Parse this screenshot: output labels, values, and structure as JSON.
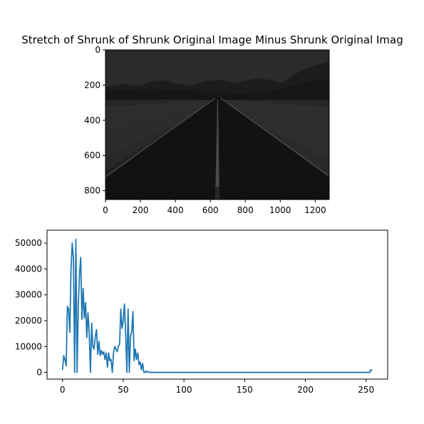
{
  "title": "Stretch of Shrunk of Shrunk Original Image Minus Shrunk Original Imag",
  "chart_data": [
    {
      "type": "image",
      "title": "Stretch of Shrunk of Shrunk Original Image Minus Shrunk Original Imag",
      "image_description": "dark, low-contrast desert highway scene with mountains on horizon",
      "xlim": [
        0,
        1280
      ],
      "ylim": [
        850,
        0
      ],
      "xticks": [
        0,
        200,
        400,
        600,
        800,
        1000,
        1200
      ],
      "yticks": [
        0,
        200,
        400,
        600,
        800
      ],
      "xtick_labels": [
        "0",
        "200",
        "400",
        "600",
        "800",
        "1000",
        "1200"
      ],
      "ytick_labels": [
        "0",
        "200",
        "400",
        "600",
        "800"
      ]
    },
    {
      "type": "line",
      "title": "",
      "xlabel": "",
      "ylabel": "",
      "xlim": [
        -12.75,
        267.75
      ],
      "ylim": [
        -2600,
        55000
      ],
      "xticks": [
        0,
        50,
        100,
        150,
        200,
        250
      ],
      "yticks": [
        0,
        10000,
        20000,
        30000,
        40000,
        50000
      ],
      "xtick_labels": [
        "0",
        "50",
        "100",
        "150",
        "200",
        "250"
      ],
      "ytick_labels": [
        "0",
        "10000",
        "20000",
        "30000",
        "40000",
        "50000"
      ],
      "color": "#1f77b4",
      "series": [
        {
          "x": [
            0,
            1,
            2,
            3,
            4,
            5,
            6,
            7,
            8,
            9,
            10,
            11,
            12,
            13,
            14,
            15,
            16,
            17,
            18,
            19,
            20,
            21,
            22,
            23,
            24,
            25,
            26,
            27,
            28,
            29,
            30,
            31,
            32,
            33,
            34,
            35,
            36,
            37,
            38,
            39,
            40,
            41,
            42,
            43,
            44,
            45,
            46,
            47,
            48,
            49,
            50,
            51,
            52,
            53,
            54,
            55,
            56,
            57,
            58,
            59,
            60,
            61,
            62,
            63,
            64,
            65,
            66,
            67,
            68,
            69,
            70,
            71,
            72,
            73,
            74,
            75,
            76,
            77,
            78,
            79,
            80,
            254,
            255
          ],
          "y": [
            1000,
            6500,
            5000,
            2500,
            25500,
            24500,
            15500,
            40000,
            50000,
            44000,
            0,
            51500,
            0,
            26000,
            38000,
            44500,
            20500,
            32500,
            21000,
            27000,
            13500,
            23000,
            15000,
            0,
            19000,
            10000,
            9000,
            14000,
            16500,
            7000,
            12000,
            6500,
            8500,
            7000,
            8000,
            5000,
            7500,
            2000,
            7500,
            4500,
            5000,
            0,
            7500,
            10000,
            9000,
            8000,
            10000,
            11000,
            24500,
            17000,
            20000,
            26500,
            14500,
            0,
            24500,
            0,
            14000,
            16000,
            23500,
            4500,
            9000,
            5000,
            7500,
            3000,
            4000,
            1000,
            3500,
            0,
            0,
            500,
            0,
            300,
            0,
            0,
            0,
            0,
            0,
            0,
            0,
            0,
            0,
            1000,
            600
          ]
        }
      ]
    }
  ]
}
